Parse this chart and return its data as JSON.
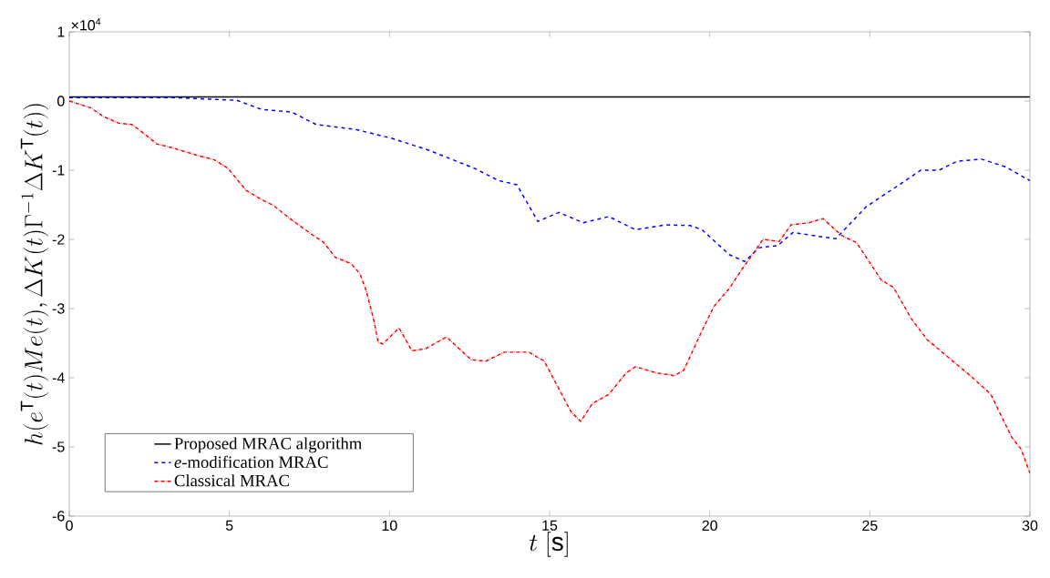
{
  "chart_data": {
    "type": "line",
    "xlabel": "t\\ [\\mathrm{s}]",
    "ylabel": "h(e^{\\mathrm{T}}(t)Me(t),\\Delta K(t)\\Gamma^{-1}\\Delta K^{\\mathrm{T}}(t))",
    "annotations": [
      "×10$^{4}$"
    ],
    "xlim": [
      0,
      30
    ],
    "xticks": [
      0,
      5,
      10,
      15,
      20,
      25,
      30
    ],
    "ylim": [
      -6,
      1
    ],
    "yticks": [
      -6,
      -5,
      -4,
      -3,
      -2,
      -1,
      0,
      1
    ],
    "legend": "bottom left",
    "grid": false,
    "series": [
      {
        "name": "Proposed MRAC algorithm",
        "color": "#000000",
        "line_style": "solid",
        "x": [
          0,
          30
        ],
        "values": [
          0.06,
          0.06
        ]
      },
      {
        "name": "*e*-modification MRAC",
        "color": "#0000ff",
        "line_style": "dashed",
        "x": [
          0,
          3.25,
          5.24,
          6.0,
          6.95,
          7.71,
          8.94,
          10.08,
          11.22,
          12.64,
          13.41,
          13.98,
          14.63,
          15.29,
          16.05,
          16.85,
          17.68,
          18.62,
          19.39,
          19.76,
          20.61,
          21.09,
          21.55,
          22.12,
          22.6,
          23.46,
          23.94,
          24.88,
          25.82,
          26.59,
          27.16,
          27.73,
          28.49,
          29.23,
          30
        ],
        "values": [
          0.05,
          0.05,
          0.01,
          -0.12,
          -0.16,
          -0.34,
          -0.41,
          -0.54,
          -0.71,
          -0.97,
          -1.15,
          -1.21,
          -1.74,
          -1.61,
          -1.76,
          -1.67,
          -1.86,
          -1.79,
          -1.8,
          -1.86,
          -2.22,
          -2.32,
          -2.12,
          -2.09,
          -1.9,
          -1.96,
          -1.99,
          -1.53,
          -1.24,
          -1.0,
          -1.0,
          -0.87,
          -0.84,
          -0.95,
          -1.15
        ]
      },
      {
        "name": "Classical MRAC",
        "color": "#ff0000",
        "line_style": "dotted",
        "x": [
          0,
          0.68,
          1.05,
          1.54,
          1.96,
          2.39,
          2.73,
          3.25,
          3.96,
          4.53,
          4.95,
          5.52,
          5.95,
          6.38,
          6.89,
          7.52,
          7.94,
          8.31,
          8.8,
          9.08,
          9.28,
          9.51,
          9.65,
          9.79,
          10.3,
          10.7,
          11.13,
          11.78,
          12.55,
          13.01,
          13.58,
          14.35,
          14.83,
          15.29,
          15.68,
          15.97,
          16.34,
          16.85,
          17.39,
          17.68,
          18.33,
          18.9,
          19.19,
          19.76,
          20.13,
          20.61,
          20.98,
          21.38,
          21.66,
          22.17,
          22.54,
          23.09,
          23.54,
          24.11,
          24.59,
          25.36,
          25.73,
          26.3,
          26.79,
          27.44,
          28.21,
          28.78,
          29.43,
          29.72,
          30
        ],
        "values": [
          0,
          -0.1,
          -0.22,
          -0.32,
          -0.34,
          -0.49,
          -0.62,
          -0.68,
          -0.78,
          -0.85,
          -0.97,
          -1.29,
          -1.41,
          -1.51,
          -1.7,
          -1.91,
          -2.04,
          -2.26,
          -2.35,
          -2.5,
          -2.75,
          -3.17,
          -3.49,
          -3.51,
          -3.28,
          -3.61,
          -3.58,
          -3.41,
          -3.74,
          -3.76,
          -3.63,
          -3.63,
          -3.76,
          -4.16,
          -4.5,
          -4.63,
          -4.37,
          -4.24,
          -3.93,
          -3.84,
          -3.93,
          -3.97,
          -3.89,
          -3.32,
          -2.97,
          -2.71,
          -2.45,
          -2.19,
          -2.0,
          -2.03,
          -1.79,
          -1.76,
          -1.7,
          -1.94,
          -2.05,
          -2.59,
          -2.69,
          -3.15,
          -3.45,
          -3.7,
          -4.0,
          -4.24,
          -4.86,
          -5.03,
          -5.38
        ]
      }
    ]
  }
}
